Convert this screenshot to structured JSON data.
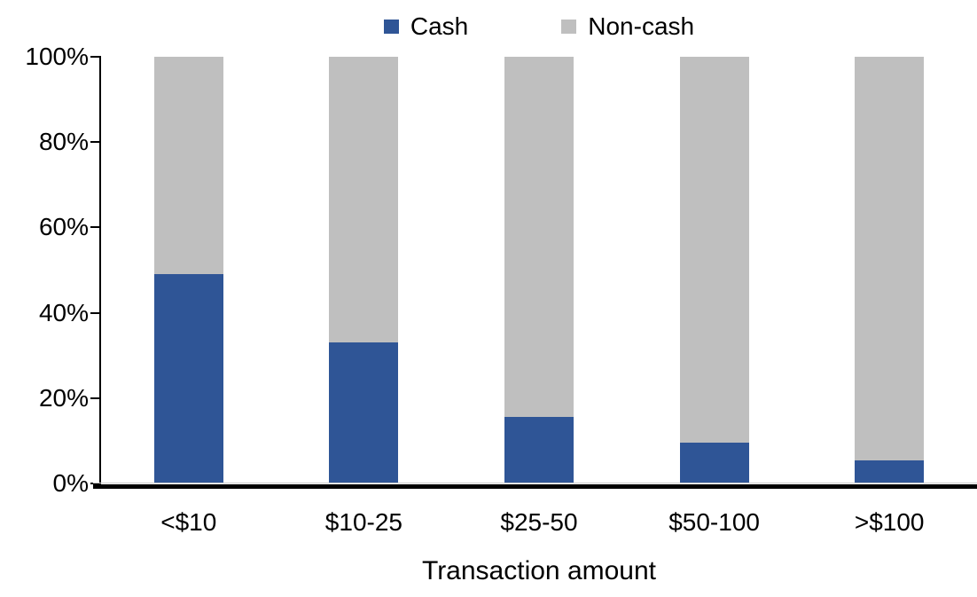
{
  "chart_data": {
    "type": "bar",
    "stacked": true,
    "title": "",
    "xlabel": "Transaction amount",
    "ylabel": "",
    "categories": [
      "<$10",
      "$10-25",
      "$25-50",
      "$50-100",
      ">$100"
    ],
    "series": [
      {
        "name": "Cash",
        "color": "#2F5596",
        "values": [
          49,
          33,
          15.5,
          9.5,
          5.5
        ]
      },
      {
        "name": "Non-cash",
        "color": "#BFBFBF",
        "values": [
          51,
          67,
          84.5,
          90.5,
          94.5
        ]
      }
    ],
    "ylim": [
      0,
      100
    ],
    "ytick_values": [
      0,
      20,
      40,
      60,
      80,
      100
    ],
    "yticks": [
      "0%",
      "20%",
      "40%",
      "60%",
      "80%",
      "100%"
    ],
    "grid": false,
    "legend_position": "top-center",
    "axis_color": "#000000",
    "background_color": "#FFFFFF"
  }
}
